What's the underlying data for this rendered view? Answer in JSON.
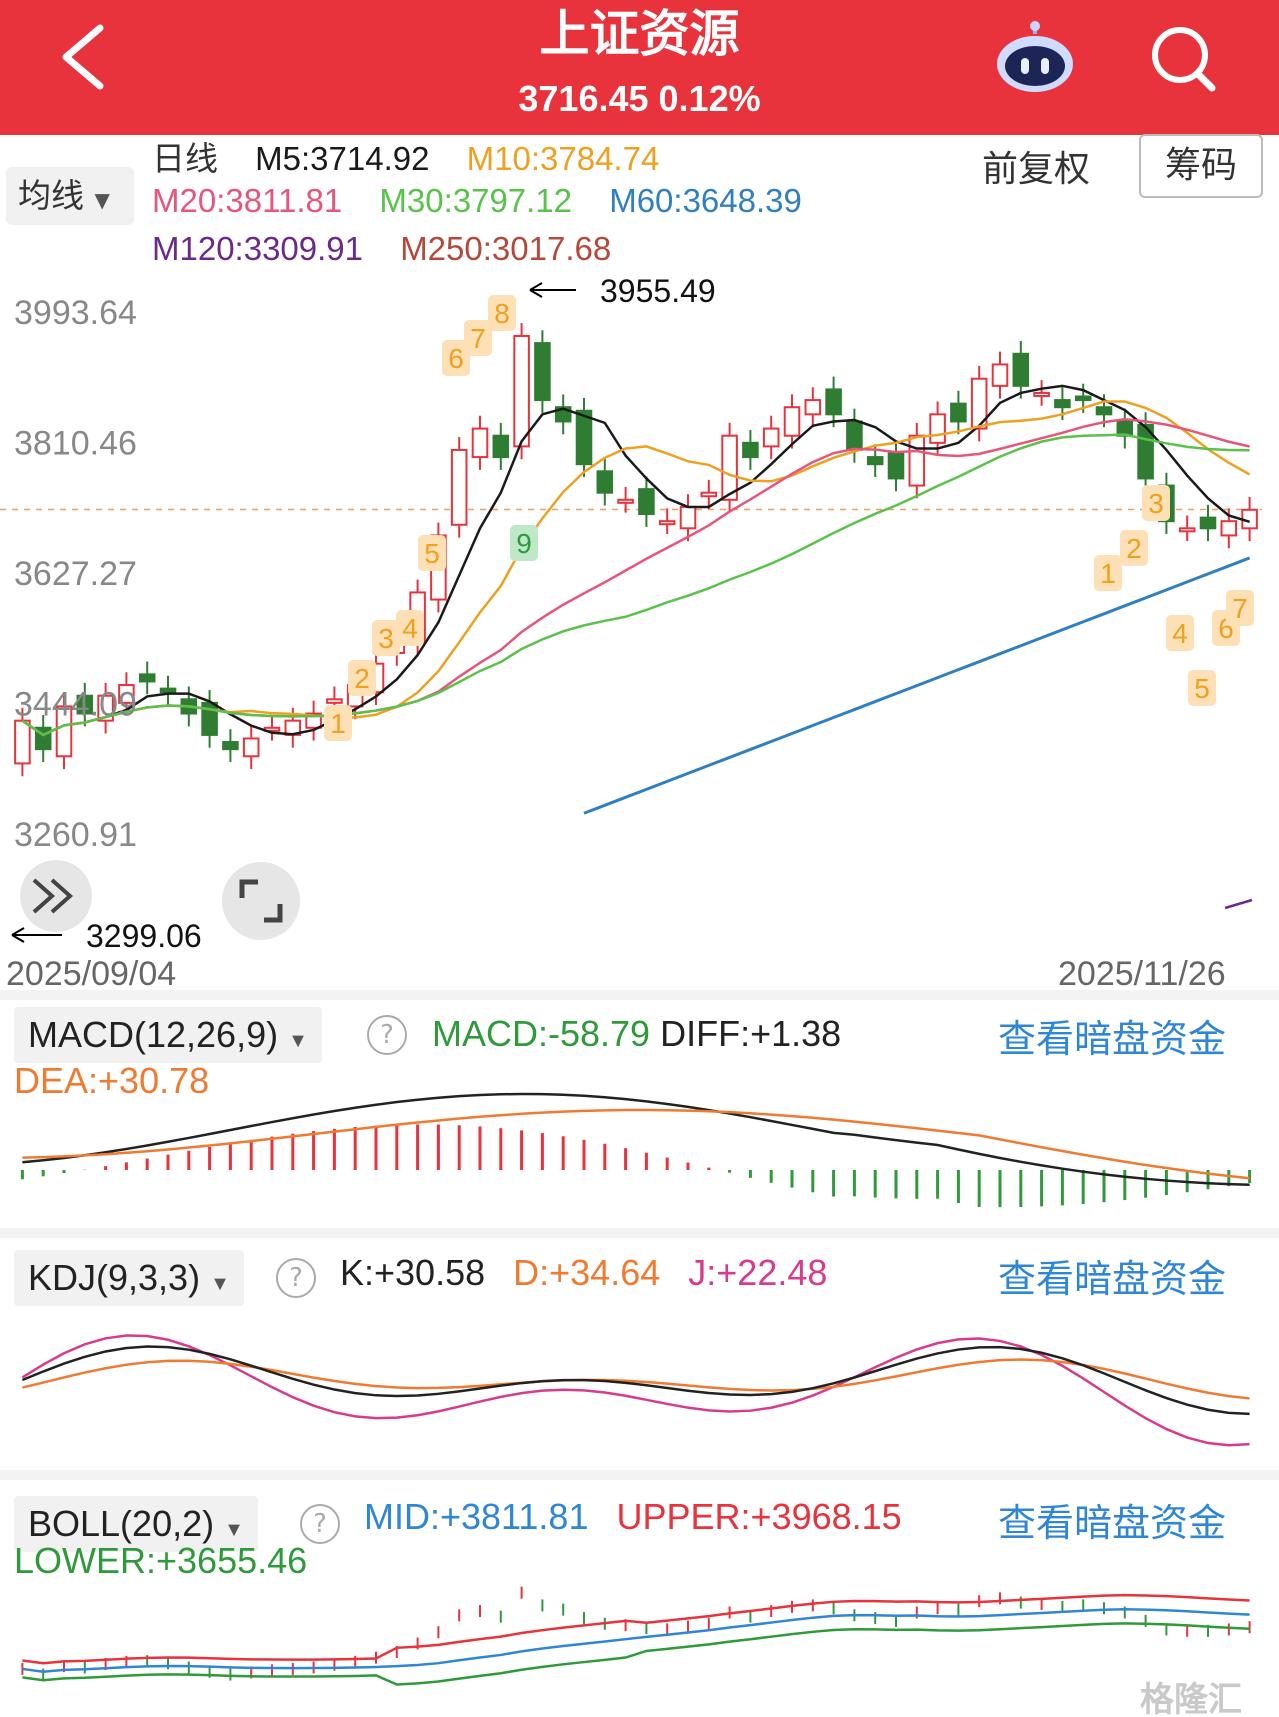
{
  "header": {
    "title": "上证资源",
    "price": "3716.45",
    "change_pct": "0.12%",
    "back_icon": "chevron-left-icon",
    "robot_icon": "robot-icon",
    "search_icon": "search-icon"
  },
  "ma": {
    "period": "日线",
    "selector": "均线",
    "m5": "M5:3714.92",
    "m10": "M10:3784.74",
    "m20": "M20:3811.81",
    "m30": "M30:3797.12",
    "m60": "M60:3648.39",
    "m120": "M120:3309.91",
    "m250": "M250:3017.68",
    "adjust": "前复权",
    "chips": "筹码",
    "colors": {
      "m5": "#1a1a1a",
      "m10": "#f0a020",
      "m20": "#e8557a",
      "m30": "#59c24a",
      "m60": "#2f7fc1",
      "m120": "#6b2a8a",
      "m250": "#b5483a"
    }
  },
  "kline": {
    "y_ticks": [
      "3993.64",
      "3810.46",
      "3627.27",
      "3444.09",
      "3260.91"
    ],
    "high_marker": "3955.49",
    "low_marker": "3299.06",
    "start_date": "2025/09/04",
    "end_date": "2025/11/26",
    "up_color": "#e8323c",
    "down_color": "#2e7d32",
    "seq_labels": [
      "1",
      "2",
      "3",
      "4",
      "5",
      "6",
      "7",
      "8",
      "9",
      "1",
      "2",
      "3",
      "4",
      "5",
      "6",
      "7"
    ]
  },
  "macd": {
    "title": "MACD(12,26,9)",
    "macd": "MACD:-58.79",
    "diff": "DIFF:+1.38",
    "dea": "DEA:+30.78",
    "link": "查看暗盘资金"
  },
  "kdj": {
    "title": "KDJ(9,3,3)",
    "k": "K:+30.58",
    "d": "D:+34.64",
    "j": "J:+22.48",
    "link": "查看暗盘资金"
  },
  "boll": {
    "title": "BOLL(20,2)",
    "mid": "MID:+3811.81",
    "upper": "UPPER:+3968.15",
    "lower": "LOWER:+3655.46",
    "link": "查看暗盘资金"
  },
  "watermark": "格隆汇"
}
